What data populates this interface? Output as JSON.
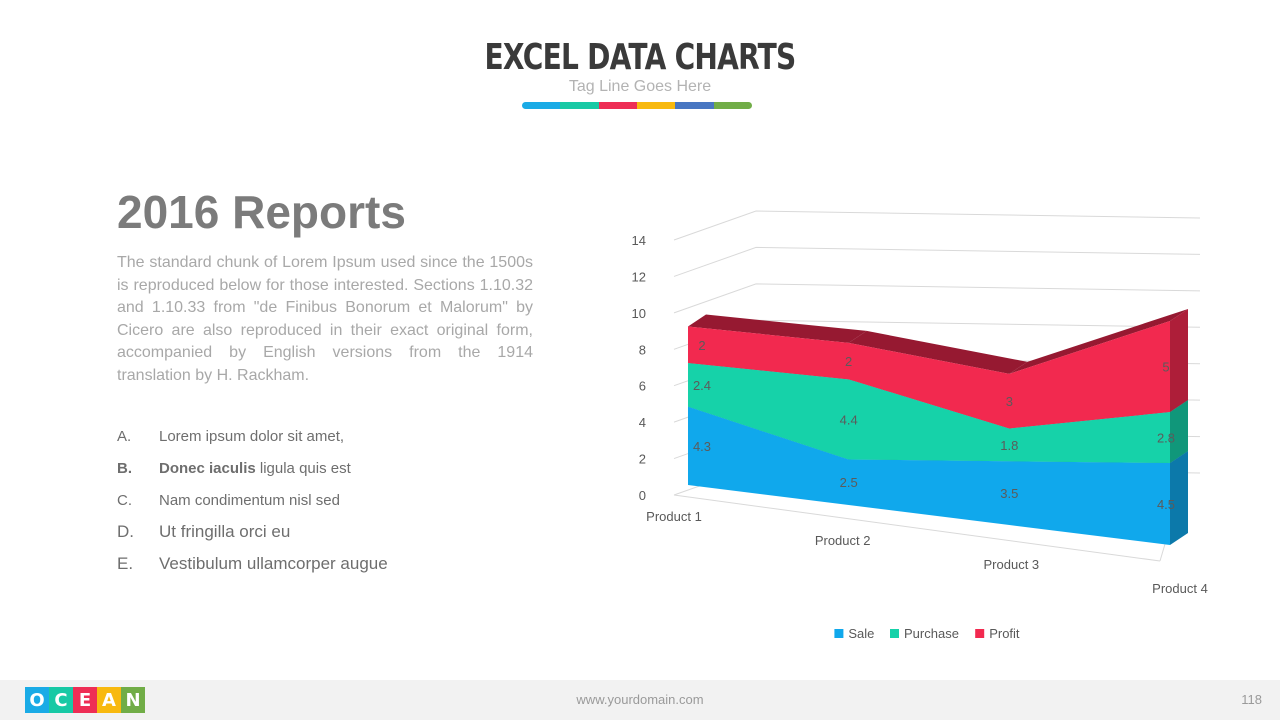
{
  "header": {
    "title": "EXCEL DATA CHARTS",
    "tagline": "Tag Line Goes Here",
    "bar_colors": [
      "#1aabe6",
      "#18c9a5",
      "#ee2e55",
      "#f8b90f",
      "#4876c2",
      "#71ad47"
    ]
  },
  "report": {
    "title": "2016 Reports",
    "body": "The standard chunk of Lorem Ipsum used since the 1500s is reproduced below for those interested. Sections 1.10.32 and 1.10.33 from \"de Finibus Bonorum et Malorum\" by Cicero are also reproduced in their exact original form, accompanied by English versions from the 1914 translation by H. Rackham."
  },
  "list": [
    {
      "marker": "A.",
      "bold": "",
      "text": "Lorem ipsum dolor sit amet,"
    },
    {
      "marker": "B.",
      "bold": "Donec iaculis",
      "text": " ligula quis est"
    },
    {
      "marker": "C.",
      "bold": "",
      "text": "Nam condimentum nisl sed"
    },
    {
      "marker": "D.",
      "bold": "",
      "text": "Ut fringilla orci eu"
    },
    {
      "marker": "E.",
      "bold": "",
      "text": "Vestibulum ullamcorper augue"
    }
  ],
  "chart_data": {
    "type": "area",
    "stacked": true,
    "three_d": true,
    "categories": [
      "Product 1",
      "Product 2",
      "Product 3",
      "Product 4"
    ],
    "series": [
      {
        "name": "Sale",
        "values": [
          4.3,
          2.5,
          3.5,
          4.5
        ],
        "color": "#10a8ec"
      },
      {
        "name": "Purchase",
        "values": [
          2.4,
          4.4,
          1.8,
          2.8
        ],
        "color": "#16d2a9"
      },
      {
        "name": "Profit",
        "values": [
          2,
          2,
          3,
          5
        ],
        "color": "#f2294f"
      }
    ],
    "yticks": [
      "0",
      "2",
      "4",
      "6",
      "8",
      "10",
      "12",
      "14"
    ],
    "ylim": [
      0,
      14
    ],
    "legend_position": "bottom",
    "grid": true
  },
  "footer": {
    "logo_letters": [
      "O",
      "C",
      "E",
      "A",
      "N"
    ],
    "logo_colors": [
      "#1aabe6",
      "#18c9a5",
      "#ee2e55",
      "#f8b90f",
      "#71ad47"
    ],
    "url": "www.yourdomain.com",
    "page": "118"
  }
}
